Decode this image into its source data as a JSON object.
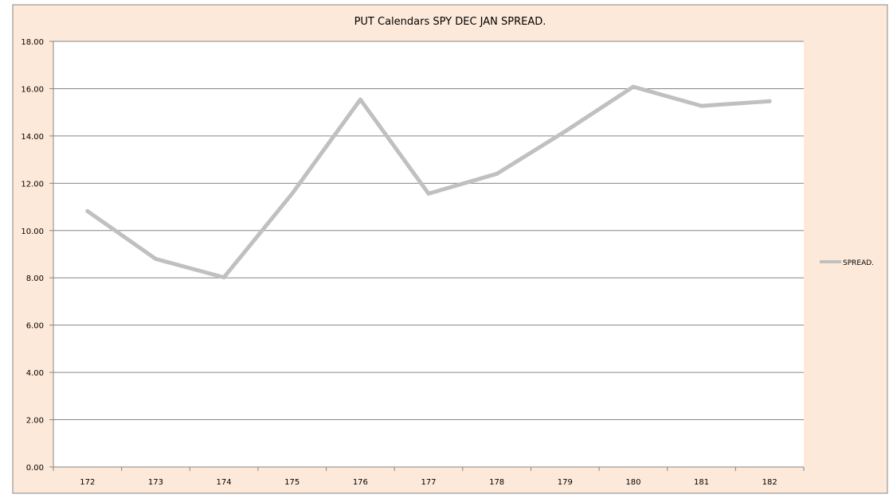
{
  "chart_data": {
    "type": "line",
    "title": "PUT Calendars SPY DEC JAN SPREAD.",
    "xlabel": "",
    "ylabel": "",
    "categories": [
      "172",
      "173",
      "174",
      "175",
      "176",
      "177",
      "178",
      "179",
      "180",
      "181",
      "182"
    ],
    "series": [
      {
        "name": "SPREAD.",
        "color": "#c0c0c0",
        "values": [
          10.82,
          8.8,
          8.02,
          11.56,
          15.54,
          11.56,
          12.4,
          14.19,
          16.08,
          15.27,
          15.47
        ]
      }
    ],
    "ylim": [
      0,
      18
    ],
    "yticks": [
      "0.00",
      "2.00",
      "4.00",
      "6.00",
      "8.00",
      "10.00",
      "12.00",
      "14.00",
      "16.00",
      "18.00"
    ],
    "grid": true,
    "legend": "right",
    "colors": {
      "chart_background": "#fde9d9",
      "plot_background": "#ffffff",
      "gridline": "#868686"
    }
  }
}
